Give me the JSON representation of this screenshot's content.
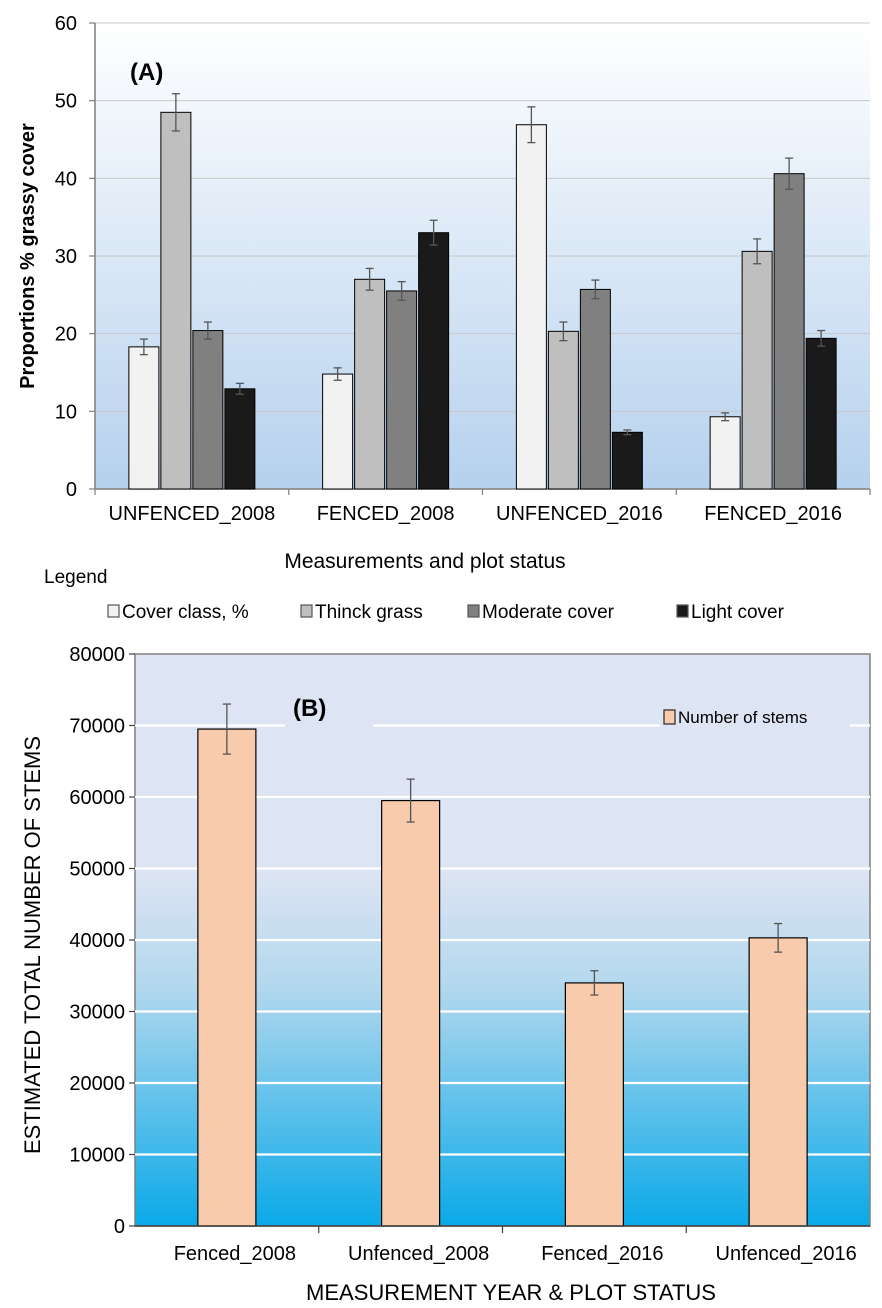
{
  "chart_data": [
    {
      "type": "bar",
      "panel_label": "(A)",
      "title": "",
      "xlabel": "Measurements and plot status",
      "ylabel": "Proportions % grassy cover",
      "ylim": [
        0,
        60
      ],
      "yticks": [
        "0",
        "10",
        "20",
        "30",
        "40",
        "50",
        "60"
      ],
      "grid": true,
      "categories": [
        "UNFENCED_2008",
        "FENCED_2008",
        "UNFENCED_2016",
        "FENCED_2016"
      ],
      "legend_title": "Legend",
      "legend_position": "bottom",
      "series": [
        {
          "name": "Cover class, %",
          "color": "#f2f2f2",
          "values": [
            18.3,
            14.8,
            46.9,
            9.3
          ],
          "errors": [
            1.0,
            0.8,
            2.3,
            0.5
          ]
        },
        {
          "name": "Thinck grass",
          "color": "#bfbfbf",
          "values": [
            48.5,
            27.0,
            20.3,
            30.6
          ],
          "errors": [
            2.4,
            1.4,
            1.2,
            1.6
          ]
        },
        {
          "name": "Moderate cover",
          "color": "#808080",
          "values": [
            20.4,
            25.5,
            25.7,
            40.6
          ],
          "errors": [
            1.1,
            1.2,
            1.2,
            2.0
          ]
        },
        {
          "name": "Light cover",
          "color": "#1a1a1a",
          "values": [
            12.9,
            33.0,
            7.3,
            19.4
          ],
          "errors": [
            0.7,
            1.6,
            0.3,
            1.0
          ]
        }
      ]
    },
    {
      "type": "bar",
      "panel_label": "(B)",
      "title": "",
      "xlabel": "MEASUREMENT YEAR & PLOT STATUS",
      "ylabel": "ESTIMATED TOTAL NUMBER OF STEMS",
      "ylim": [
        0,
        80000
      ],
      "yticks": [
        "0",
        "10000",
        "20000",
        "30000",
        "40000",
        "50000",
        "60000",
        "70000",
        "80000"
      ],
      "grid": true,
      "categories": [
        "Fenced_2008",
        "Unfenced_2008",
        "Fenced_2016",
        "Unfenced_2016"
      ],
      "legend_position": "top-right",
      "series": [
        {
          "name": "Number of stems",
          "color": "#f8cbad",
          "values": [
            69500,
            59500,
            34000,
            40300
          ],
          "errors": [
            3500,
            3000,
            1700,
            2000
          ]
        }
      ]
    }
  ]
}
